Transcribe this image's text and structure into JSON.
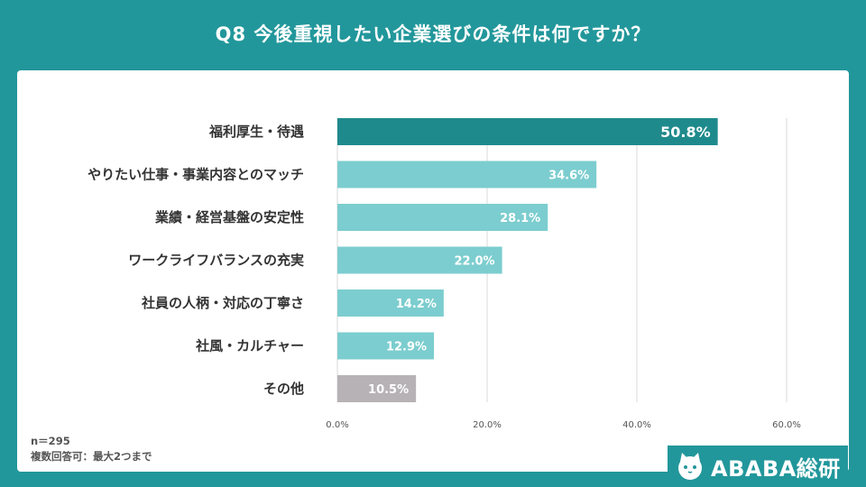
{
  "title": "Q8  今後重視したい企業選びの条件は何ですか？",
  "notes": {
    "n": "n＝295",
    "multi": "複数回答可：最大2つまで"
  },
  "brand": {
    "name": "ABABA総研",
    "icon": "cat-face-icon"
  },
  "colors": {
    "background": "#22979b",
    "top_bar": "#1f8a8c",
    "bar": "#7ccdcf",
    "other_bar": "#b7b2b6",
    "grid": "#d9d9d9"
  },
  "chart_data": {
    "type": "bar",
    "orientation": "horizontal",
    "categories": [
      "福利厚生・待遇",
      "やりたい仕事・事業内容とのマッチ",
      "業績・経営基盤の安定性",
      "ワークライフバランスの充実",
      "社員の人柄・対応の丁寧さ",
      "社風・カルチャー",
      "その他"
    ],
    "values": [
      50.8,
      34.6,
      28.1,
      22.0,
      14.2,
      12.9,
      10.5
    ],
    "value_labels": [
      "50.8%",
      "34.6%",
      "28.1%",
      "22.0%",
      "14.2%",
      "12.9%",
      "10.5%"
    ],
    "xlim": [
      0,
      60
    ],
    "xticks": [
      0,
      20,
      40,
      60
    ],
    "xtick_labels": [
      "0.0%",
      "20.0%",
      "40.0%",
      "60.0%"
    ],
    "grid": true,
    "legend": "none"
  }
}
